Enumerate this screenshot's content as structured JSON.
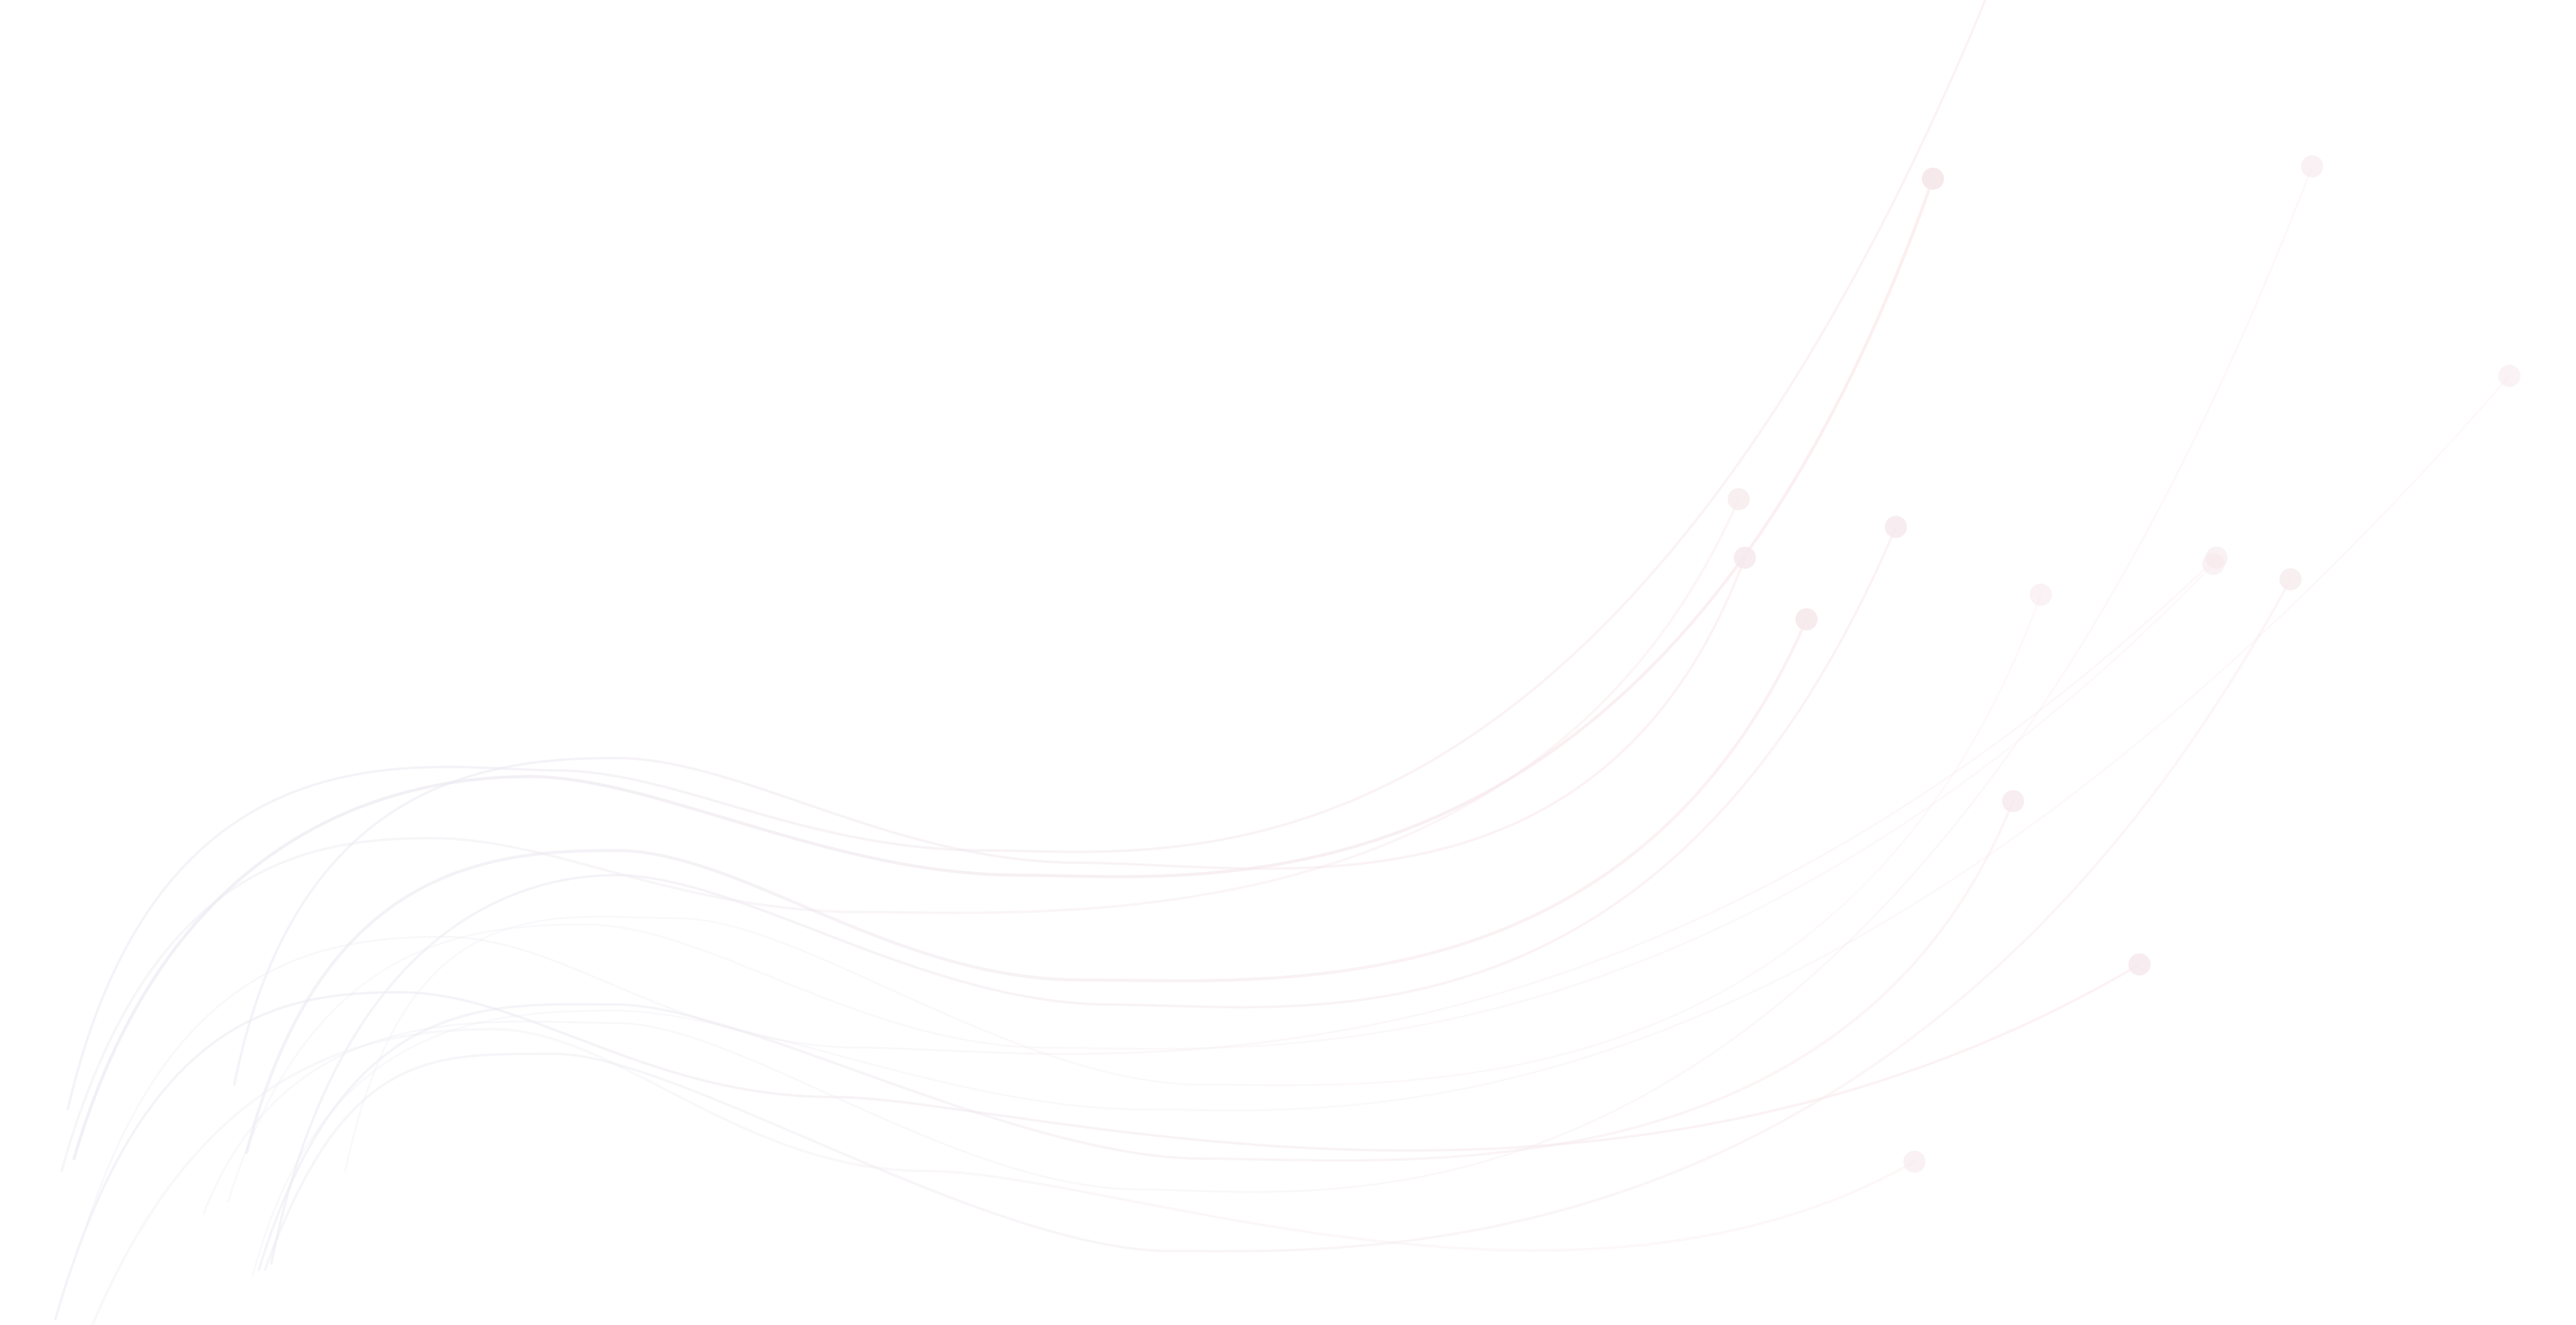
{
  "background": {
    "color": "#ffffff",
    "description_color_start": "#e9eaf2",
    "description_color_end": "#fbe8ea",
    "dot_color": "#f6e9ec"
  }
}
